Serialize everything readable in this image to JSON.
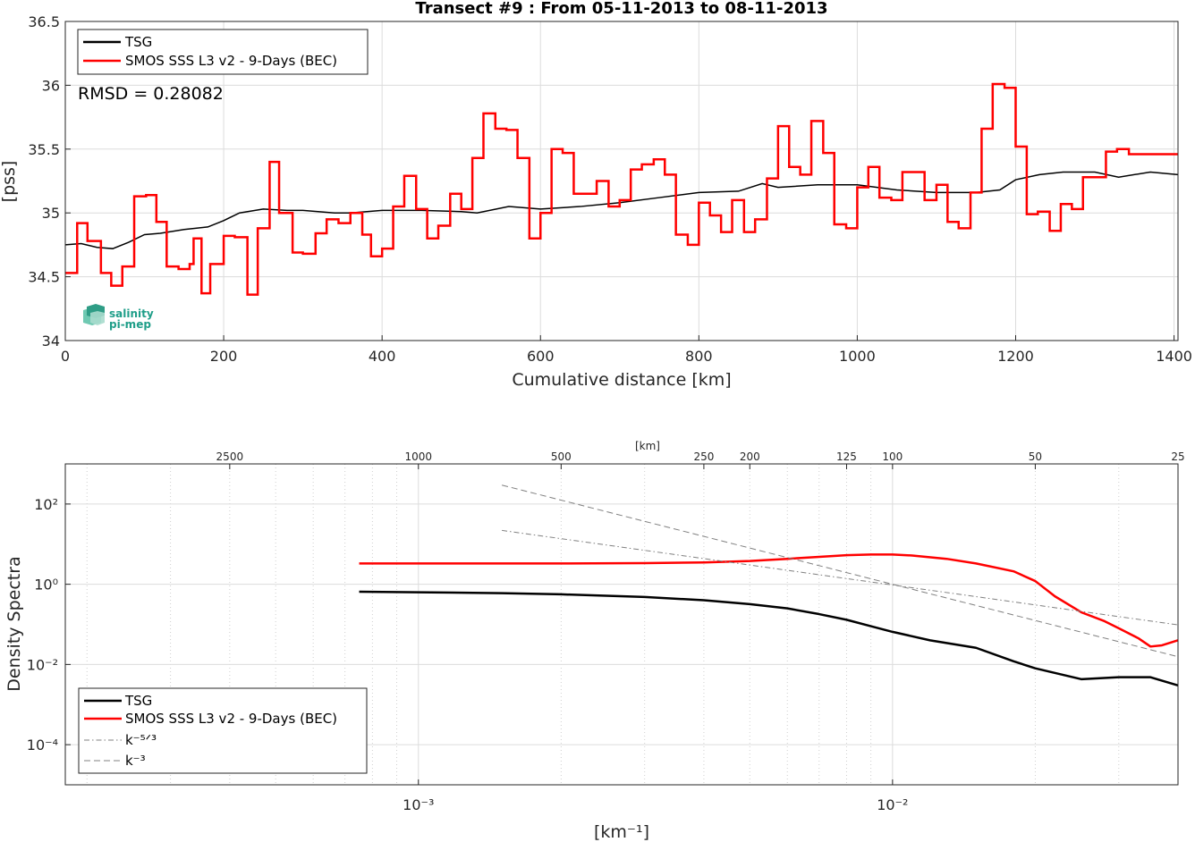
{
  "colors": {
    "tsg": "#000000",
    "smos": "#ff0000",
    "power_law": "#808080",
    "grid": "#dcdcdc",
    "logo": "#1f9e89"
  },
  "logo": {
    "line1": "salinity",
    "line2": "pi-mep",
    "icon": "salinity-pimep-logo-icon"
  },
  "chart_data": [
    {
      "type": "line",
      "title": "Transect #9 : From 05-11-2013 to 08-11-2013",
      "xlabel": "Cumulative distance [km]",
      "ylabel": "[pss]",
      "xlim": [
        0,
        1405
      ],
      "ylim": [
        34,
        36.5
      ],
      "xticks": [
        0,
        200,
        400,
        600,
        800,
        1000,
        1200,
        1400
      ],
      "xtick_labels": [
        "0",
        "200",
        "400",
        "600",
        "800",
        "1000",
        "1200",
        "1400"
      ],
      "yticks": [
        34,
        34.5,
        35,
        35.5,
        36,
        36.5
      ],
      "ytick_labels": [
        "34",
        "34.5",
        "35",
        "35.5",
        "36",
        "36.5"
      ],
      "grid": true,
      "legend_position": "top-left",
      "annotation": "RMSD = 0.28082",
      "series": [
        {
          "name": "TSG",
          "style": "line",
          "x": [
            0,
            20,
            40,
            60,
            80,
            100,
            120,
            150,
            180,
            200,
            220,
            250,
            280,
            300,
            340,
            360,
            400,
            450,
            500,
            520,
            560,
            600,
            650,
            700,
            750,
            800,
            850,
            880,
            900,
            950,
            1000,
            1050,
            1100,
            1150,
            1180,
            1200,
            1230,
            1260,
            1300,
            1330,
            1370,
            1405
          ],
          "y": [
            34.75,
            34.76,
            34.73,
            34.72,
            34.77,
            34.83,
            34.84,
            34.87,
            34.89,
            34.94,
            35.0,
            35.03,
            35.02,
            35.02,
            35.0,
            35.0,
            35.02,
            35.02,
            35.01,
            35.0,
            35.05,
            35.03,
            35.05,
            35.08,
            35.12,
            35.16,
            35.17,
            35.23,
            35.2,
            35.22,
            35.22,
            35.18,
            35.16,
            35.16,
            35.18,
            35.26,
            35.3,
            35.32,
            35.32,
            35.28,
            35.32,
            35.3
          ]
        },
        {
          "name": "SMOS SSS L3 v2 - 9-Days (BEC)",
          "style": "step",
          "x": [
            0,
            15,
            28,
            45,
            58,
            72,
            87,
            102,
            115,
            128,
            143,
            157,
            162,
            172,
            183,
            200,
            214,
            230,
            243,
            258,
            270,
            287,
            300,
            316,
            330,
            345,
            360,
            375,
            386,
            400,
            414,
            428,
            443,
            457,
            471,
            486,
            500,
            514,
            528,
            543,
            557,
            571,
            586,
            600,
            614,
            628,
            642,
            657,
            671,
            686,
            700,
            714,
            728,
            743,
            757,
            771,
            786,
            800,
            814,
            828,
            842,
            857,
            871,
            886,
            900,
            914,
            928,
            942,
            957,
            971,
            986,
            1000,
            1014,
            1028,
            1043,
            1057,
            1071,
            1085,
            1100,
            1114,
            1128,
            1143,
            1157,
            1171,
            1186,
            1200,
            1214,
            1228,
            1243,
            1257,
            1271,
            1285,
            1300,
            1314,
            1328,
            1343,
            1357,
            1371,
            1385,
            1400,
            1405
          ],
          "y": [
            34.53,
            34.92,
            34.78,
            34.53,
            34.43,
            34.58,
            35.13,
            35.14,
            34.93,
            34.58,
            34.56,
            34.6,
            34.8,
            34.37,
            34.6,
            34.82,
            34.81,
            34.36,
            34.88,
            35.4,
            35.0,
            34.69,
            34.68,
            34.84,
            34.95,
            34.92,
            35.0,
            34.83,
            34.66,
            34.72,
            35.05,
            35.29,
            35.03,
            34.8,
            34.9,
            35.15,
            35.03,
            35.43,
            35.78,
            35.66,
            35.65,
            35.43,
            34.8,
            35.0,
            35.5,
            35.47,
            35.15,
            35.15,
            35.25,
            35.05,
            35.1,
            35.34,
            35.38,
            35.42,
            35.3,
            34.83,
            34.75,
            35.08,
            34.98,
            34.85,
            35.1,
            34.85,
            34.95,
            35.27,
            35.68,
            35.36,
            35.3,
            35.72,
            35.47,
            34.91,
            34.88,
            35.2,
            35.36,
            35.12,
            35.1,
            35.32,
            35.32,
            35.1,
            35.22,
            34.93,
            34.88,
            35.16,
            35.66,
            36.01,
            35.98,
            35.52,
            34.99,
            35.01,
            34.86,
            35.07,
            35.03,
            35.28,
            35.28,
            35.48,
            35.5,
            35.46,
            35.46,
            35.46,
            35.46,
            35.46,
            35.46
          ]
        }
      ]
    },
    {
      "type": "line",
      "title": "",
      "xlabel": "[km⁻¹]",
      "ylabel": "Density Spectra",
      "xscale": "log",
      "yscale": "log",
      "xlim": [
        0.00018,
        0.04
      ],
      "ylim": [
        1e-05,
        1000
      ],
      "xticks": [
        0.001,
        0.01
      ],
      "xtick_labels": [
        "10⁻³",
        "10⁻²"
      ],
      "yticks": [
        0.0001,
        0.01,
        1,
        100
      ],
      "ytick_labels": [
        "10⁻⁴",
        "10⁻²",
        "10⁰",
        "10²"
      ],
      "top_axis_label": "[km]",
      "top_ticks_km": [
        2500,
        1000,
        500,
        250,
        200,
        125,
        100,
        50,
        25
      ],
      "top_tick_labels": [
        "2500",
        "1000",
        "500",
        "250",
        "200",
        "125",
        "100",
        "50",
        "25"
      ],
      "grid": true,
      "legend_position": "bottom-left",
      "series": [
        {
          "name": "TSG",
          "style": "solid",
          "x": [
            0.00075,
            0.001,
            0.0015,
            0.002,
            0.003,
            0.004,
            0.005,
            0.006,
            0.007,
            0.008,
            0.009,
            0.01,
            0.012,
            0.015,
            0.018,
            0.02,
            0.025,
            0.03,
            0.035,
            0.04
          ],
          "y": [
            0.65,
            0.63,
            0.6,
            0.56,
            0.48,
            0.4,
            0.32,
            0.25,
            0.18,
            0.13,
            0.09,
            0.065,
            0.04,
            0.026,
            0.012,
            0.008,
            0.0043,
            0.0048,
            0.0048,
            0.003
          ]
        },
        {
          "name": "SMOS SSS L3 v2 - 9-Days (BEC)",
          "style": "solid",
          "x": [
            0.00075,
            0.001,
            0.0015,
            0.002,
            0.003,
            0.004,
            0.005,
            0.006,
            0.007,
            0.008,
            0.009,
            0.01,
            0.011,
            0.013,
            0.015,
            0.018,
            0.02,
            0.022,
            0.025,
            0.028,
            0.03,
            0.033,
            0.035,
            0.037,
            0.04
          ],
          "y": [
            3.3,
            3.3,
            3.3,
            3.3,
            3.35,
            3.5,
            3.8,
            4.3,
            4.8,
            5.3,
            5.5,
            5.5,
            5.2,
            4.3,
            3.3,
            2.1,
            1.2,
            0.5,
            0.2,
            0.12,
            0.08,
            0.045,
            0.028,
            0.03,
            0.04
          ]
        },
        {
          "name": "k⁻⁵ᐟ³",
          "style": "dash-dot",
          "x": [
            0.0015,
            0.04
          ],
          "y": [
            22,
            0.097
          ]
        },
        {
          "name": "k⁻³",
          "style": "dashed",
          "x": [
            0.0015,
            0.04
          ],
          "y": [
            296,
            0.0156
          ]
        }
      ]
    }
  ]
}
